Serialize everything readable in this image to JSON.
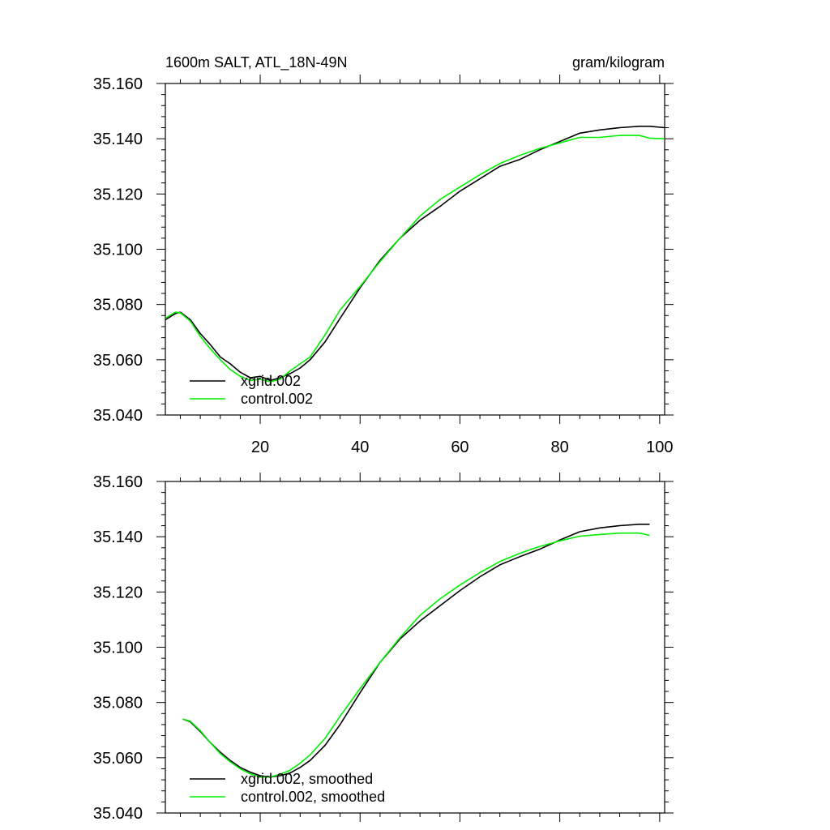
{
  "figure": {
    "title_left": "1600m SALT, ATL_18N-49N",
    "title_right": "gram/kilogram"
  },
  "colors": {
    "series_a": "#000000",
    "series_b": "#00ee00"
  },
  "chart_data": [
    {
      "type": "line",
      "panel": "top",
      "title": "1600m SALT, ATL_18N-49N",
      "units": "gram/kilogram",
      "xlim": [
        1,
        101
      ],
      "ylim": [
        35.04,
        35.16
      ],
      "xticks": [
        20,
        40,
        60,
        80,
        100
      ],
      "xtick_labels": [
        "20",
        "40",
        "60",
        "80",
        "100"
      ],
      "yticks": [
        35.04,
        35.06,
        35.08,
        35.1,
        35.12,
        35.14,
        35.16
      ],
      "ytick_labels": [
        "35.040",
        "35.060",
        "35.080",
        "35.100",
        "35.120",
        "35.140",
        "35.160"
      ],
      "legend": [
        "xgrid.002",
        "control.002"
      ],
      "series": [
        {
          "name": "xgrid.002",
          "x": [
            1,
            3,
            4,
            6,
            8,
            10,
            12,
            14,
            16,
            18,
            20,
            22,
            24,
            26,
            28,
            30,
            33,
            36,
            40,
            44,
            48,
            52,
            56,
            60,
            64,
            68,
            72,
            76,
            80,
            84,
            88,
            92,
            96,
            98,
            101
          ],
          "values": [
            35.0745,
            35.0767,
            35.0772,
            35.0745,
            35.0695,
            35.0655,
            35.061,
            35.0585,
            35.0555,
            35.0535,
            35.054,
            35.0525,
            35.0535,
            35.055,
            35.057,
            35.06,
            35.0665,
            35.075,
            35.086,
            35.096,
            35.104,
            35.1105,
            35.1155,
            35.121,
            35.1255,
            35.13,
            35.1325,
            35.136,
            35.139,
            35.142,
            35.1432,
            35.144,
            35.1445,
            35.1445,
            35.144
          ]
        },
        {
          "name": "control.002",
          "x": [
            1,
            3,
            4,
            6,
            8,
            10,
            12,
            14,
            16,
            18,
            20,
            22,
            24,
            26,
            28,
            30,
            33,
            36,
            40,
            44,
            48,
            52,
            56,
            60,
            64,
            68,
            72,
            76,
            80,
            84,
            88,
            92,
            96,
            98,
            101
          ],
          "values": [
            35.075,
            35.0772,
            35.077,
            35.074,
            35.0685,
            35.064,
            35.06,
            35.0565,
            35.054,
            35.0525,
            35.053,
            35.052,
            35.053,
            35.056,
            35.0585,
            35.061,
            35.069,
            35.078,
            35.0865,
            35.0955,
            35.104,
            35.112,
            35.118,
            35.1225,
            35.127,
            35.131,
            35.134,
            35.1365,
            35.1385,
            35.1405,
            35.1405,
            35.1412,
            35.1412,
            35.1402,
            35.14
          ]
        }
      ]
    },
    {
      "type": "line",
      "panel": "bottom",
      "xlim": [
        1,
        101
      ],
      "ylim": [
        35.04,
        35.16
      ],
      "xticks": [
        20,
        40,
        60,
        80,
        100
      ],
      "yticks": [
        35.04,
        35.06,
        35.08,
        35.1,
        35.12,
        35.14,
        35.16
      ],
      "ytick_labels": [
        "35.040",
        "35.060",
        "35.080",
        "35.100",
        "35.120",
        "35.140",
        "35.160"
      ],
      "legend": [
        "xgrid.002, smoothed",
        "control.002, smoothed"
      ],
      "series": [
        {
          "name": "xgrid.002, smoothed",
          "x": [
            4.5,
            6,
            8,
            10,
            12,
            14,
            16,
            18,
            20,
            22,
            24,
            26,
            28,
            30,
            33,
            36,
            40,
            44,
            48,
            52,
            56,
            60,
            64,
            68,
            72,
            76,
            80,
            84,
            88,
            92,
            96,
            98
          ],
          "values": [
            35.074,
            35.073,
            35.0695,
            35.0655,
            35.062,
            35.059,
            35.0565,
            35.0548,
            35.0535,
            35.053,
            35.0535,
            35.0545,
            35.0565,
            35.059,
            35.0645,
            35.072,
            35.0835,
            35.0945,
            35.103,
            35.1095,
            35.115,
            35.1205,
            35.1255,
            35.1298,
            35.1328,
            35.1355,
            35.1388,
            35.1418,
            35.1432,
            35.144,
            35.1445,
            35.1445
          ]
        },
        {
          "name": "control.002, smoothed",
          "x": [
            4.5,
            6,
            8,
            10,
            12,
            14,
            16,
            18,
            20,
            22,
            24,
            26,
            28,
            30,
            33,
            36,
            40,
            44,
            48,
            52,
            56,
            60,
            64,
            68,
            72,
            76,
            80,
            84,
            88,
            92,
            96,
            98
          ],
          "values": [
            35.074,
            35.0732,
            35.0698,
            35.0655,
            35.0615,
            35.0585,
            35.056,
            35.0542,
            35.053,
            35.053,
            35.054,
            35.0555,
            35.058,
            35.061,
            35.067,
            35.075,
            35.085,
            35.0945,
            35.1035,
            35.1115,
            35.1175,
            35.1225,
            35.127,
            35.131,
            35.134,
            35.1365,
            35.1385,
            35.1402,
            35.1408,
            35.1413,
            35.1413,
            35.1405
          ]
        }
      ]
    }
  ]
}
